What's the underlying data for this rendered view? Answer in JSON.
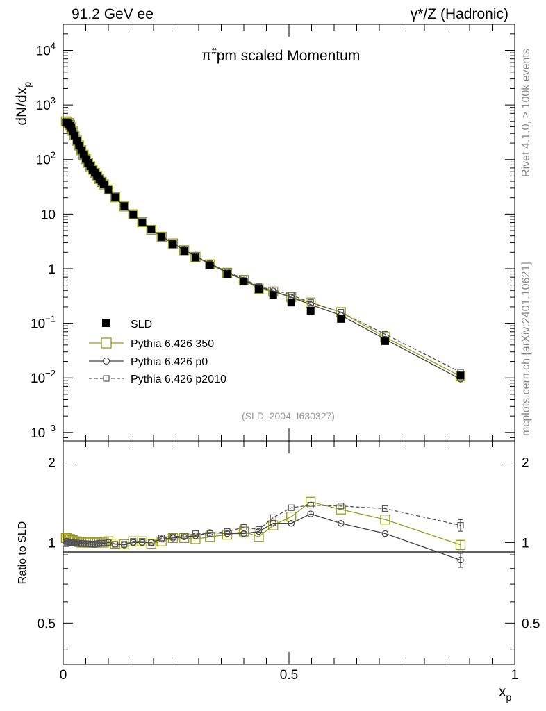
{
  "header": {
    "left": "91.2 GeV ee",
    "right": "γ*/Z (Hadronic)"
  },
  "side_text": {
    "rivet": "Rivet 4.1.0, ≥ 100k events",
    "mcplots": "mcplots.cern.ch [arXiv:2401.10621]"
  },
  "colors": {
    "sld": "#000000",
    "p350": "#9a9a1a",
    "p0": "#444444",
    "p2010": "#555555"
  },
  "chart_data": [
    {
      "type": "line",
      "title": "π#pm scaled Momentum",
      "title_base": "π",
      "title_sup": "#",
      "title_rest": "pm scaled Momentum",
      "ylabel": "dN/dx",
      "ylabel_sub": "p",
      "xlabel": "x",
      "xlabel_sub": "p",
      "yscale": "log",
      "ylim": [
        0.0007,
        30000
      ],
      "xlim": [
        0,
        1
      ],
      "y_ticks": [
        {
          "v": 10000,
          "base": "10",
          "exp": "4"
        },
        {
          "v": 1000,
          "base": "10",
          "exp": "3"
        },
        {
          "v": 100,
          "base": "10",
          "exp": "2"
        },
        {
          "v": 10,
          "base": "10",
          "exp": ""
        },
        {
          "v": 1,
          "base": "1",
          "exp": ""
        },
        {
          "v": 0.1,
          "base": "10",
          "exp": "−1"
        },
        {
          "v": 0.01,
          "base": "10",
          "exp": "−2"
        },
        {
          "v": 0.001,
          "base": "10",
          "exp": "−3"
        }
      ],
      "watermark": "(SLD_2004_I630327)",
      "x": [
        0.006,
        0.009,
        0.012,
        0.015,
        0.018,
        0.021,
        0.025,
        0.03,
        0.035,
        0.04,
        0.045,
        0.05,
        0.055,
        0.06,
        0.065,
        0.07,
        0.075,
        0.08,
        0.085,
        0.09,
        0.1,
        0.115,
        0.135,
        0.155,
        0.175,
        0.195,
        0.218,
        0.243,
        0.268,
        0.293,
        0.325,
        0.363,
        0.4,
        0.433,
        0.465,
        0.505,
        0.548,
        0.615,
        0.713,
        0.88
      ],
      "series": [
        {
          "name": "SLD",
          "values": [
            480,
            470,
            450,
            420,
            380,
            330,
            275,
            220,
            180,
            148,
            122,
            102,
            87,
            75,
            65,
            57,
            50,
            44,
            39,
            35,
            28,
            20.5,
            14,
            9.8,
            7.1,
            5.2,
            3.8,
            2.8,
            2.1,
            1.6,
            1.15,
            0.8,
            0.58,
            0.42,
            0.33,
            0.24,
            0.17,
            0.12,
            0.047,
            0.011
          ]
        },
        {
          "name": "Pythia 6.426 350",
          "values": [
            500,
            490,
            465,
            430,
            385,
            335,
            278,
            222,
            181,
            148,
            122,
            102,
            87,
            75,
            65,
            57,
            50,
            44,
            39,
            35,
            28.2,
            20.3,
            13.8,
            9.9,
            7.15,
            5.15,
            3.85,
            2.9,
            2.18,
            1.65,
            1.2,
            0.84,
            0.62,
            0.43,
            0.38,
            0.3,
            0.24,
            0.16,
            0.056,
            0.0107
          ]
        },
        {
          "name": "Pythia 6.426 p0",
          "values": [
            485,
            475,
            452,
            420,
            380,
            330,
            274,
            219,
            178,
            147,
            121,
            101,
            86,
            74,
            64,
            56,
            49.5,
            43.8,
            38.8,
            34.8,
            28,
            20.2,
            13.7,
            9.8,
            7.1,
            5.2,
            3.9,
            2.9,
            2.2,
            1.7,
            1.22,
            0.86,
            0.62,
            0.46,
            0.39,
            0.3,
            0.22,
            0.14,
            0.051,
            0.0095
          ]
        },
        {
          "name": "Pythia 6.426 p2010",
          "values": [
            478,
            470,
            448,
            418,
            378,
            329,
            274,
            219,
            179,
            147,
            121,
            101,
            86,
            74,
            64,
            56,
            49.5,
            43.8,
            38.8,
            34.8,
            28,
            20.2,
            13.8,
            9.9,
            7.15,
            5.2,
            3.95,
            2.95,
            2.22,
            1.72,
            1.24,
            0.88,
            0.66,
            0.47,
            0.41,
            0.33,
            0.24,
            0.16,
            0.063,
            0.0127
          ]
        }
      ],
      "legend": {
        "position": "middle-left"
      }
    },
    {
      "type": "line",
      "ylabel": "Ratio to SLD",
      "yscale": "log",
      "ylim": [
        0.35,
        2.4
      ],
      "y_ticks": [
        {
          "v": 2,
          "label": "2"
        },
        {
          "v": 1,
          "label": "1"
        },
        {
          "v": 0.5,
          "label": "0.5"
        }
      ],
      "x_ticks": [
        {
          "v": 0,
          "label": "0"
        },
        {
          "v": 0.5,
          "label": "0.5"
        },
        {
          "v": 1,
          "label": "1"
        }
      ],
      "series": [
        {
          "name": "Pythia 6.426 350",
          "values": [
            1.04,
            1.04,
            1.03,
            1.03,
            1.02,
            1.02,
            1.01,
            1.01,
            1.005,
            1.0,
            1.0,
            1.0,
            1.0,
            1.0,
            1.0,
            1.0,
            1.0,
            1.0,
            1.0,
            1.0,
            1.01,
            0.99,
            0.985,
            1.01,
            1.01,
            0.99,
            1.01,
            1.04,
            1.04,
            1.03,
            1.05,
            1.07,
            1.1,
            1.05,
            1.16,
            1.25,
            1.42,
            1.33,
            1.22,
            0.98
          ]
        },
        {
          "name": "Pythia 6.426 p0",
          "values": [
            1.01,
            1.01,
            1.005,
            1.0,
            1.0,
            1.0,
            0.995,
            0.995,
            0.99,
            0.993,
            0.992,
            0.99,
            0.99,
            0.987,
            0.985,
            0.985,
            0.99,
            0.995,
            0.995,
            0.995,
            1.0,
            0.985,
            0.98,
            1.0,
            1.0,
            1.0,
            1.03,
            1.04,
            1.05,
            1.06,
            1.09,
            1.08,
            1.08,
            1.1,
            1.18,
            1.18,
            1.28,
            1.18,
            1.08,
            0.86
          ]
        },
        {
          "name": "Pythia 6.426 p2010",
          "values": [
            0.99,
            0.995,
            0.995,
            0.995,
            0.995,
            0.997,
            0.997,
            0.995,
            0.995,
            0.995,
            0.992,
            0.99,
            0.99,
            0.987,
            0.985,
            0.985,
            0.99,
            0.995,
            0.995,
            0.995,
            1.0,
            0.985,
            0.985,
            1.01,
            1.01,
            1.0,
            1.04,
            1.05,
            1.06,
            1.08,
            1.08,
            1.1,
            1.14,
            1.12,
            1.24,
            1.35,
            1.38,
            1.37,
            1.34,
            1.16
          ]
        }
      ],
      "error_bars": {
        "Pythia 6.426 350": 0.04,
        "Pythia 6.426 p0": 0.06,
        "Pythia 6.426 p2010": 0.05
      }
    }
  ]
}
